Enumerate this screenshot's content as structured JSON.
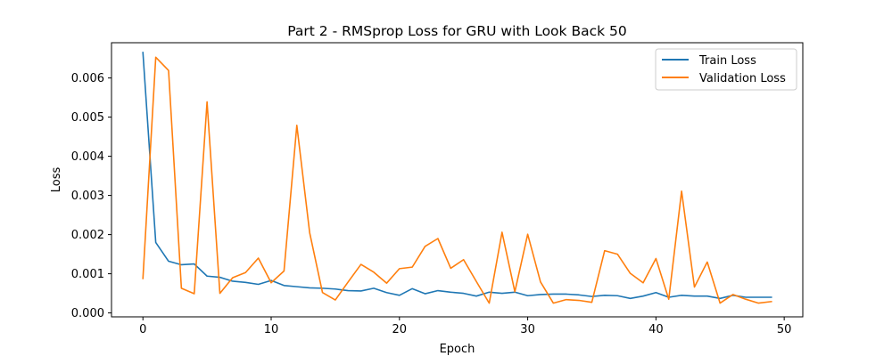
{
  "chart_data": {
    "type": "line",
    "title": "Part 2 - RMSprop Loss for GRU with Look Back 50",
    "xlabel": "Epoch",
    "ylabel": "Loss",
    "xlim": [
      -2.45,
      51.45
    ],
    "ylim": [
      -0.0001,
      0.0069
    ],
    "xticks": [
      0,
      10,
      20,
      30,
      40,
      50
    ],
    "yticks": [
      0.0,
      0.001,
      0.002,
      0.003,
      0.004,
      0.005,
      0.006
    ],
    "ytick_labels": [
      "0.000",
      "0.001",
      "0.002",
      "0.003",
      "0.004",
      "0.005",
      "0.006"
    ],
    "legend_position": "top-right",
    "grid": false,
    "series": [
      {
        "name": "Train Loss",
        "color": "#1f77b4",
        "x": [
          0,
          1,
          2,
          3,
          4,
          5,
          6,
          7,
          8,
          9,
          10,
          11,
          12,
          13,
          14,
          15,
          16,
          17,
          18,
          19,
          20,
          21,
          22,
          23,
          24,
          25,
          26,
          27,
          28,
          29,
          30,
          31,
          32,
          33,
          34,
          35,
          36,
          37,
          38,
          39,
          40,
          41,
          42,
          43,
          44,
          45,
          46,
          47,
          48,
          49
        ],
        "values": [
          0.00665,
          0.0018,
          0.00132,
          0.00123,
          0.00125,
          0.00094,
          0.00091,
          0.00081,
          0.00078,
          0.00073,
          0.00083,
          0.0007,
          0.00067,
          0.00064,
          0.00063,
          0.00061,
          0.00057,
          0.00056,
          0.00063,
          0.00052,
          0.00045,
          0.00062,
          0.00049,
          0.00057,
          0.00053,
          0.0005,
          0.00043,
          0.00053,
          0.0005,
          0.00053,
          0.00044,
          0.00047,
          0.00048,
          0.00048,
          0.00046,
          0.00042,
          0.00045,
          0.00044,
          0.00037,
          0.00043,
          0.00052,
          0.0004,
          0.00045,
          0.00043,
          0.00043,
          0.00037,
          0.00045,
          0.0004,
          0.0004,
          0.0004
        ]
      },
      {
        "name": "Validation Loss",
        "color": "#ff7f0e",
        "x": [
          0,
          1,
          2,
          3,
          4,
          5,
          6,
          7,
          8,
          9,
          10,
          11,
          12,
          13,
          14,
          15,
          16,
          17,
          18,
          19,
          20,
          21,
          22,
          23,
          24,
          25,
          26,
          27,
          28,
          29,
          30,
          31,
          32,
          33,
          34,
          35,
          36,
          37,
          38,
          39,
          40,
          41,
          42,
          43,
          44,
          45,
          46,
          47,
          48,
          49
        ],
        "values": [
          0.00088,
          0.00653,
          0.00619,
          0.00063,
          0.00049,
          0.00539,
          0.0005,
          0.0009,
          0.00103,
          0.0014,
          0.00077,
          0.00107,
          0.00479,
          0.00205,
          0.00052,
          0.00033,
          0.00079,
          0.00124,
          0.00104,
          0.00076,
          0.00113,
          0.00117,
          0.0017,
          0.0019,
          0.00114,
          0.00136,
          0.0008,
          0.00025,
          0.00206,
          0.00054,
          0.00201,
          0.00079,
          0.00025,
          0.00034,
          0.00032,
          0.00027,
          0.00159,
          0.0015,
          0.00101,
          0.00077,
          0.00139,
          0.00035,
          0.00311,
          0.00066,
          0.0013,
          0.00025,
          0.00047,
          0.00035,
          0.00025,
          0.00029
        ]
      }
    ]
  }
}
